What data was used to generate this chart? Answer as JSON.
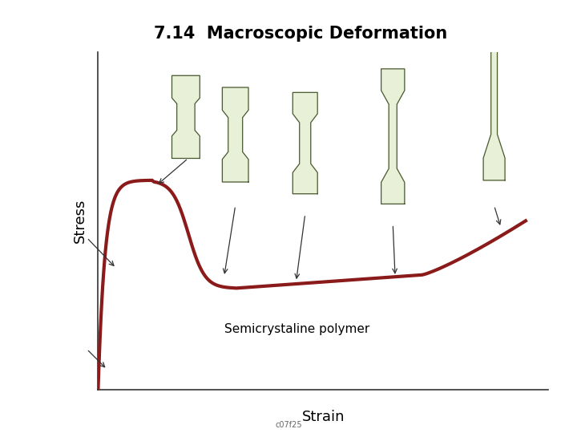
{
  "title": "7.14  Macroscopic Deformation",
  "xlabel": "Strain",
  "ylabel": "Stress",
  "background_color": "#ffffff",
  "curve_color": "#8B1A1A",
  "curve_linewidth": 3.0,
  "dog_bone_fill": "#e8f0d8",
  "dog_bone_edge": "#4a5a30",
  "footer_text": "c07f25",
  "label_text": "Semicrystaline polymer",
  "arrow_color": "#333333"
}
